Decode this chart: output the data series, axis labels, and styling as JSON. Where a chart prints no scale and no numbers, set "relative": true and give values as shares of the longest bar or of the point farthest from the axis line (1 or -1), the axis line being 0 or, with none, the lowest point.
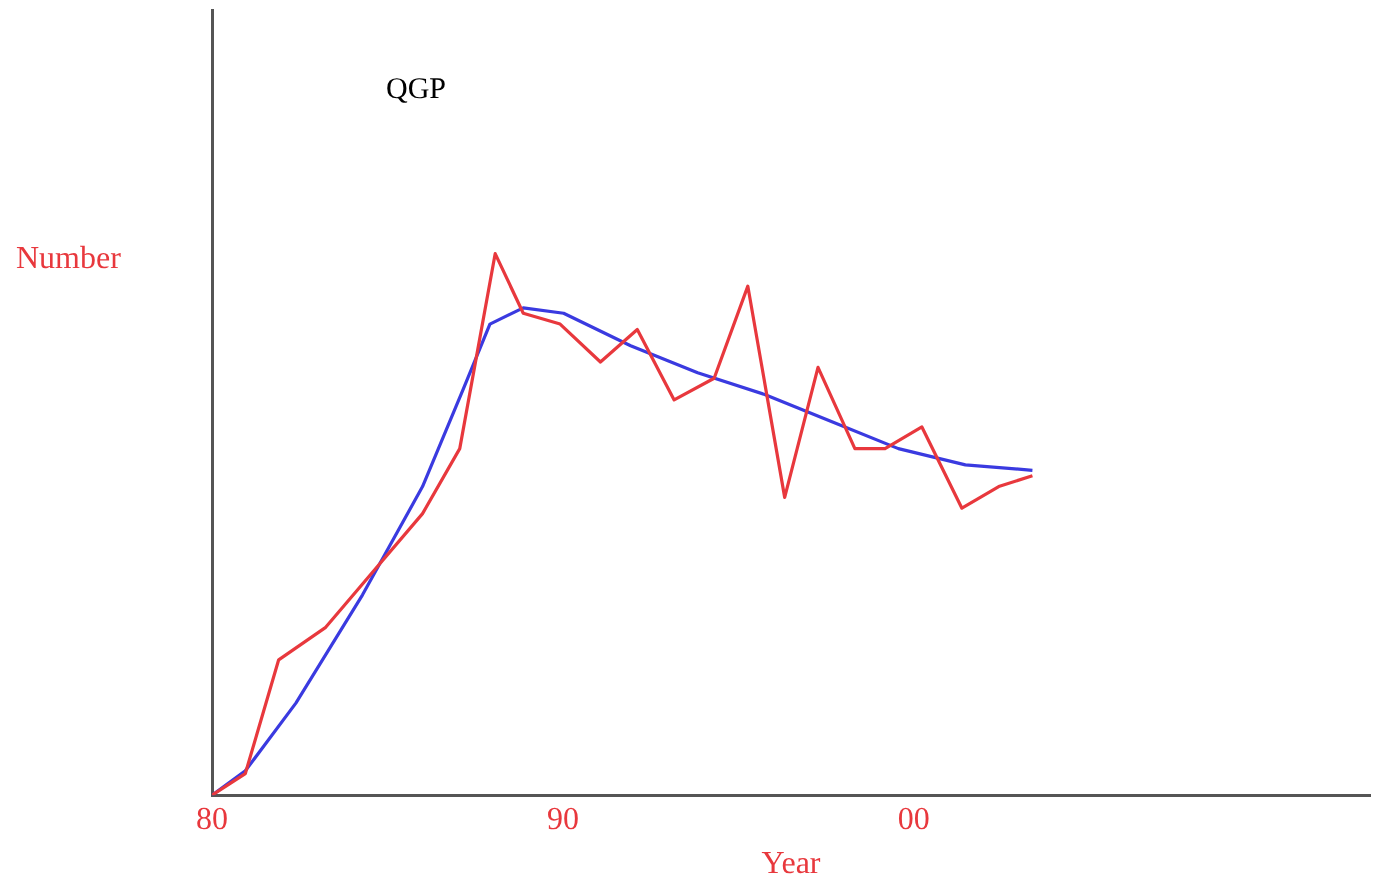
{
  "chart_data": {
    "type": "line",
    "title": "QGP",
    "xlabel": "Year",
    "ylabel": "Number",
    "relative": true,
    "grid": false,
    "legend": false,
    "marker": "none",
    "line_style": "solid",
    "xlim": [
      1980,
      2013
    ],
    "xticks": [
      {
        "value": 1980,
        "label": "80"
      },
      {
        "value": 1990,
        "label": "90"
      },
      {
        "value": 2000,
        "label": "00"
      }
    ],
    "series": [
      {
        "color": "#e8383d",
        "x": [
          1980,
          1980.95,
          1981.9,
          1983.24,
          1984.29,
          1986.0,
          1987.06,
          1988.07,
          1988.87,
          1989.92,
          1991.07,
          1992.12,
          1993.17,
          1994.31,
          1995.27,
          1996.32,
          1997.27,
          1998.32,
          1999.18,
          2000.23,
          2001.37,
          2002.42,
          2003.38
        ],
        "values": [
          0,
          0.04,
          0.25,
          0.31,
          0.39,
          0.52,
          0.64,
          1.0,
          0.89,
          0.87,
          0.8,
          0.86,
          0.73,
          0.77,
          0.94,
          0.55,
          0.79,
          0.64,
          0.64,
          0.68,
          0.53,
          0.57,
          0.59
        ]
      },
      {
        "color": "#3a3ae0",
        "x": [
          1980,
          1980.95,
          1982.39,
          1984.29,
          1986.0,
          1987.16,
          1987.92,
          1988.87,
          1990.02,
          1991.93,
          1993.84,
          1995.75,
          1997.65,
          1999.56,
          2001.47,
          2003.38
        ],
        "values": [
          0,
          0.045,
          0.17,
          0.37,
          0.57,
          0.75,
          0.87,
          0.9,
          0.89,
          0.83,
          0.78,
          0.74,
          0.69,
          0.64,
          0.61,
          0.6
        ]
      }
    ]
  }
}
